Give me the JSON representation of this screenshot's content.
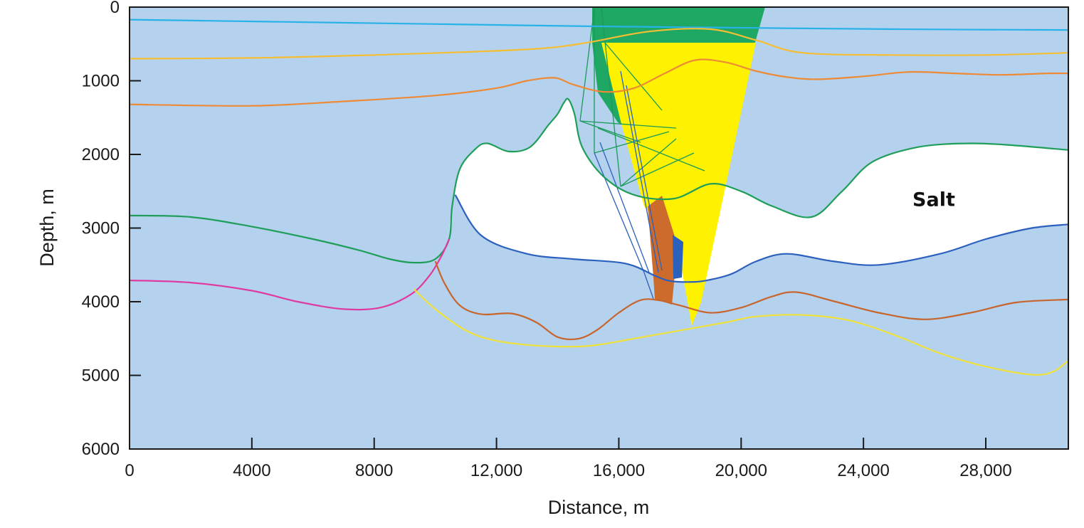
{
  "chart_data": {
    "type": "line",
    "title": "",
    "xlabel": "Distance, m",
    "ylabel": "Depth, m",
    "xlim": [
      0,
      30700
    ],
    "ylim": [
      6000,
      0
    ],
    "x_ticks": [
      0,
      4000,
      8000,
      12000,
      16000,
      20000,
      24000,
      28000
    ],
    "x_tick_labels": [
      "0",
      "4000",
      "8000",
      "12,000",
      "16,000",
      "20,000",
      "24,000",
      "28,000"
    ],
    "y_ticks": [
      0,
      1000,
      2000,
      3000,
      4000,
      5000,
      6000
    ],
    "y_tick_labels": [
      "0",
      "1000",
      "2000",
      "3000",
      "4000",
      "5000",
      "6000"
    ],
    "grid": false,
    "background_color": "#b4d1ee",
    "annotations": [
      {
        "text": "Salt",
        "x": 26300,
        "y": 2700
      }
    ],
    "salt_body": {
      "fill": "#ffffff",
      "top": [
        [
          10430,
          3100
        ],
        [
          10550,
          2700
        ],
        [
          10800,
          2200
        ],
        [
          11300,
          1930
        ],
        [
          11700,
          1850
        ],
        [
          12400,
          1960
        ],
        [
          13100,
          1900
        ],
        [
          13700,
          1600
        ],
        [
          14000,
          1450
        ],
        [
          14200,
          1300
        ],
        [
          14350,
          1250
        ],
        [
          14550,
          1450
        ],
        [
          14800,
          1900
        ],
        [
          15500,
          2300
        ],
        [
          16500,
          2550
        ],
        [
          17800,
          2600
        ],
        [
          19000,
          2400
        ],
        [
          20000,
          2500
        ],
        [
          21000,
          2700
        ],
        [
          22300,
          2850
        ],
        [
          23300,
          2500
        ],
        [
          24300,
          2100
        ],
        [
          25800,
          1900
        ],
        [
          27500,
          1850
        ],
        [
          29000,
          1880
        ],
        [
          30700,
          1940
        ]
      ],
      "base": [
        [
          30700,
          2950
        ],
        [
          29500,
          3000
        ],
        [
          28000,
          3150
        ],
        [
          26500,
          3350
        ],
        [
          24500,
          3500
        ],
        [
          23000,
          3450
        ],
        [
          21500,
          3350
        ],
        [
          20500,
          3450
        ],
        [
          19700,
          3620
        ],
        [
          19000,
          3700
        ],
        [
          18500,
          3730
        ],
        [
          17700,
          3720
        ],
        [
          17200,
          3650
        ],
        [
          16200,
          3480
        ],
        [
          14500,
          3420
        ],
        [
          13000,
          3350
        ],
        [
          11500,
          3100
        ],
        [
          10650,
          2550
        ],
        [
          10600,
          2600
        ],
        [
          10430,
          3100
        ]
      ]
    },
    "series": [
      {
        "color": "#29b2e8",
        "values": [
          [
            0,
            170
          ],
          [
            5000,
            200
          ],
          [
            10000,
            230
          ],
          [
            15000,
            260
          ],
          [
            20000,
            280
          ],
          [
            25000,
            300
          ],
          [
            30700,
            310
          ]
        ]
      },
      {
        "color": "#f5be32",
        "values": [
          [
            0,
            700
          ],
          [
            4000,
            690
          ],
          [
            8000,
            650
          ],
          [
            11000,
            610
          ],
          [
            13500,
            560
          ],
          [
            15000,
            480
          ],
          [
            17000,
            330
          ],
          [
            19000,
            300
          ],
          [
            20500,
            450
          ],
          [
            22000,
            620
          ],
          [
            25000,
            650
          ],
          [
            28000,
            650
          ],
          [
            30700,
            620
          ]
        ]
      },
      {
        "color": "#ee8a35",
        "values": [
          [
            0,
            1320
          ],
          [
            4000,
            1340
          ],
          [
            7000,
            1280
          ],
          [
            10000,
            1200
          ],
          [
            12000,
            1100
          ],
          [
            13000,
            1000
          ],
          [
            13900,
            960
          ],
          [
            14500,
            1050
          ],
          [
            15500,
            1150
          ],
          [
            16500,
            1100
          ],
          [
            17500,
            900
          ],
          [
            18500,
            720
          ],
          [
            19500,
            750
          ],
          [
            20500,
            870
          ],
          [
            21500,
            950
          ],
          [
            22500,
            980
          ],
          [
            24000,
            940
          ],
          [
            25500,
            880
          ],
          [
            27000,
            900
          ],
          [
            28500,
            920
          ],
          [
            30000,
            900
          ],
          [
            30700,
            900
          ]
        ]
      },
      {
        "color": "#1f9e5a",
        "values": [
          [
            0,
            2830
          ],
          [
            2000,
            2850
          ],
          [
            4000,
            2980
          ],
          [
            6000,
            3150
          ],
          [
            7500,
            3300
          ],
          [
            8500,
            3420
          ],
          [
            9300,
            3470
          ],
          [
            10000,
            3420
          ],
          [
            10450,
            3150
          ],
          [
            10550,
            2700
          ],
          [
            10800,
            2200
          ],
          [
            11300,
            1930
          ],
          [
            11700,
            1850
          ],
          [
            12400,
            1960
          ],
          [
            13100,
            1900
          ],
          [
            13700,
            1600
          ],
          [
            14000,
            1450
          ],
          [
            14200,
            1300
          ],
          [
            14350,
            1250
          ],
          [
            14550,
            1450
          ],
          [
            14800,
            1900
          ],
          [
            15500,
            2300
          ],
          [
            16500,
            2550
          ],
          [
            17800,
            2600
          ],
          [
            19000,
            2400
          ],
          [
            20000,
            2500
          ],
          [
            21000,
            2700
          ],
          [
            22300,
            2850
          ],
          [
            23300,
            2500
          ],
          [
            24300,
            2100
          ],
          [
            25800,
            1900
          ],
          [
            27500,
            1850
          ],
          [
            29000,
            1880
          ],
          [
            30700,
            1940
          ]
        ]
      },
      {
        "color": "#2c60bd",
        "values": [
          [
            10650,
            2550
          ],
          [
            11500,
            3100
          ],
          [
            13000,
            3350
          ],
          [
            14500,
            3420
          ],
          [
            16200,
            3480
          ],
          [
            17200,
            3650
          ],
          [
            17700,
            3720
          ],
          [
            18500,
            3730
          ],
          [
            19000,
            3700
          ],
          [
            19700,
            3620
          ],
          [
            20500,
            3450
          ],
          [
            21500,
            3350
          ],
          [
            23000,
            3450
          ],
          [
            24500,
            3500
          ],
          [
            26500,
            3350
          ],
          [
            28000,
            3150
          ],
          [
            29500,
            3000
          ],
          [
            30700,
            2950
          ]
        ]
      },
      {
        "color": "#e03aa0",
        "values": [
          [
            0,
            3710
          ],
          [
            2000,
            3740
          ],
          [
            4000,
            3850
          ],
          [
            5500,
            4000
          ],
          [
            7000,
            4100
          ],
          [
            8200,
            4080
          ],
          [
            9200,
            3900
          ],
          [
            9800,
            3650
          ],
          [
            10200,
            3380
          ],
          [
            10450,
            3150
          ]
        ]
      },
      {
        "color": "#c8652c",
        "values": [
          [
            10000,
            3450
          ],
          [
            10300,
            3750
          ],
          [
            10800,
            4050
          ],
          [
            11500,
            4170
          ],
          [
            12500,
            4160
          ],
          [
            13300,
            4280
          ],
          [
            14000,
            4480
          ],
          [
            14700,
            4500
          ],
          [
            15300,
            4380
          ],
          [
            16000,
            4150
          ],
          [
            16700,
            3980
          ],
          [
            17300,
            3980
          ],
          [
            18000,
            4050
          ],
          [
            19000,
            4150
          ],
          [
            20000,
            4080
          ],
          [
            21000,
            3930
          ],
          [
            21800,
            3870
          ],
          [
            23000,
            3990
          ],
          [
            24500,
            4150
          ],
          [
            26000,
            4240
          ],
          [
            27500,
            4150
          ],
          [
            29000,
            4010
          ],
          [
            30700,
            3970
          ]
        ]
      },
      {
        "color": "#f0e23a",
        "values": [
          [
            9300,
            3830
          ],
          [
            10000,
            4100
          ],
          [
            11000,
            4390
          ],
          [
            12000,
            4530
          ],
          [
            13500,
            4600
          ],
          [
            15000,
            4600
          ],
          [
            16500,
            4500
          ],
          [
            18000,
            4390
          ],
          [
            19500,
            4280
          ],
          [
            20500,
            4200
          ],
          [
            22000,
            4180
          ],
          [
            23500,
            4250
          ],
          [
            25000,
            4450
          ],
          [
            26500,
            4700
          ],
          [
            28000,
            4880
          ],
          [
            29500,
            4990
          ],
          [
            30200,
            4950
          ],
          [
            30700,
            4800
          ]
        ]
      }
    ]
  }
}
